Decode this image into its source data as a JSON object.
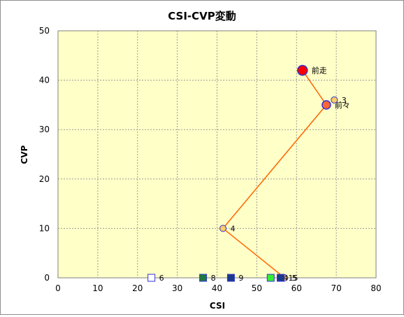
{
  "chart_data": {
    "type": "scatter",
    "title": "CSI-CVP変動",
    "xlabel": "CSI",
    "ylabel": "CVP",
    "xlim": [
      0,
      80
    ],
    "ylim": [
      0,
      50
    ],
    "xticks": [
      "0",
      "10",
      "20",
      "30",
      "40",
      "50",
      "60",
      "70",
      "80"
    ],
    "yticks": [
      "0",
      "10",
      "20",
      "30",
      "40",
      "50"
    ],
    "grid": true,
    "plot_background": "#ffffc8",
    "line_color": "#ff6600",
    "path": [
      {
        "x": 61.5,
        "y": 42
      },
      {
        "x": 67.5,
        "y": 35
      },
      {
        "x": 41.5,
        "y": 10
      },
      {
        "x": 57,
        "y": 0
      }
    ],
    "points": [
      {
        "x": 61.5,
        "y": 42,
        "label": "前走",
        "shape": "circle",
        "size": "large",
        "fill": "#ff0000",
        "stroke": "#3333cc"
      },
      {
        "x": 67.5,
        "y": 35,
        "label": "前々",
        "shape": "circle",
        "size": "medium",
        "fill": "#ff6633",
        "stroke": "#3333cc"
      },
      {
        "x": 69.5,
        "y": 36,
        "label": "3",
        "shape": "circle",
        "size": "small",
        "fill": "#ffcc66",
        "stroke": "#3333cc"
      },
      {
        "x": 41.5,
        "y": 10,
        "label": "4",
        "shape": "circle",
        "size": "small",
        "fill": "#ffcc66",
        "stroke": "#3333cc"
      },
      {
        "x": 57,
        "y": 0,
        "label": "5",
        "shape": "circle",
        "size": "small",
        "fill": "#ffcc66",
        "stroke": "#3333cc"
      },
      {
        "x": 23.5,
        "y": 0,
        "label": "6",
        "shape": "square",
        "fill": "#ffffff",
        "stroke": "#3333cc"
      },
      {
        "x": 36.5,
        "y": 0,
        "label": "8",
        "shape": "square",
        "fill": "#1e7a3c",
        "stroke": "#3333cc"
      },
      {
        "x": 43.5,
        "y": 0,
        "label": "9",
        "shape": "square",
        "fill": "#1a3a8a",
        "stroke": "#3333cc"
      },
      {
        "x": 53.5,
        "y": 0,
        "label": "14",
        "shape": "square",
        "fill": "#33ee33",
        "stroke": "#3333cc"
      },
      {
        "x": 56,
        "y": 0,
        "label": "15",
        "shape": "square",
        "fill": "#1a3a8a",
        "stroke": "#3333cc"
      }
    ]
  }
}
